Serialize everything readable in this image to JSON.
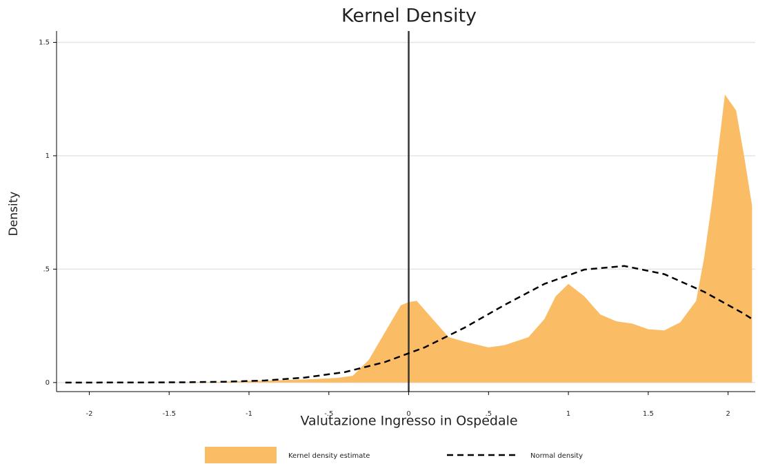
{
  "chart_data": {
    "type": "area",
    "title": "Kernel Density",
    "xlabel": "Valutazione Ingresso in Ospedale",
    "ylabel": "Density",
    "xlim": [
      -2.205,
      2.17
    ],
    "ylim": [
      -0.04,
      1.55
    ],
    "xticks": [
      -2,
      -1.5,
      -1,
      {
        "value": -0.5,
        "label": "-.5"
      },
      0,
      {
        "value": 0.5,
        "label": ".5"
      },
      1,
      1.5,
      2
    ],
    "yticks": [
      0,
      {
        "value": 0.5,
        "label": ".5"
      },
      1,
      1.5
    ],
    "grid": true,
    "xline": 0,
    "legend": "bottom",
    "series": [
      {
        "name": "Kernel density estimate",
        "color": "#fbbc66",
        "style": "area",
        "x": [
          -2.15,
          -1.5,
          -1.2,
          -1,
          -0.8,
          -0.6,
          -0.45,
          -0.35,
          -0.25,
          -0.15,
          -0.05,
          0,
          0.05,
          0.15,
          0.25,
          0.35,
          0.5,
          0.6,
          0.75,
          0.85,
          0.92,
          1.0,
          1.1,
          1.2,
          1.3,
          1.4,
          1.5,
          1.6,
          1.7,
          1.8,
          1.85,
          1.9,
          1.98,
          2.05,
          2.1,
          2.15
        ],
        "values": [
          0,
          0,
          0.003,
          0.007,
          0.01,
          0.015,
          0.02,
          0.03,
          0.1,
          0.22,
          0.34,
          0.355,
          0.36,
          0.28,
          0.2,
          0.18,
          0.155,
          0.165,
          0.2,
          0.28,
          0.38,
          0.435,
          0.38,
          0.3,
          0.27,
          0.26,
          0.235,
          0.23,
          0.265,
          0.36,
          0.55,
          0.8,
          1.27,
          1.2,
          1.0,
          0.78
        ]
      },
      {
        "name": "Normal density",
        "color": "#000000",
        "style": "dashed",
        "x": [
          -2.15,
          -1.9,
          -1.65,
          -1.4,
          -1.15,
          -0.9,
          -0.65,
          -0.4,
          -0.15,
          0.1,
          0.35,
          0.6,
          0.85,
          1.1,
          1.35,
          1.6,
          1.85,
          2.1,
          2.15
        ],
        "values": [
          0,
          0.0001,
          0.0004,
          0.0012,
          0.0035,
          0.009,
          0.022,
          0.046,
          0.09,
          0.155,
          0.242,
          0.342,
          0.435,
          0.498,
          0.514,
          0.478,
          0.4,
          0.303,
          0.28
        ]
      }
    ]
  }
}
